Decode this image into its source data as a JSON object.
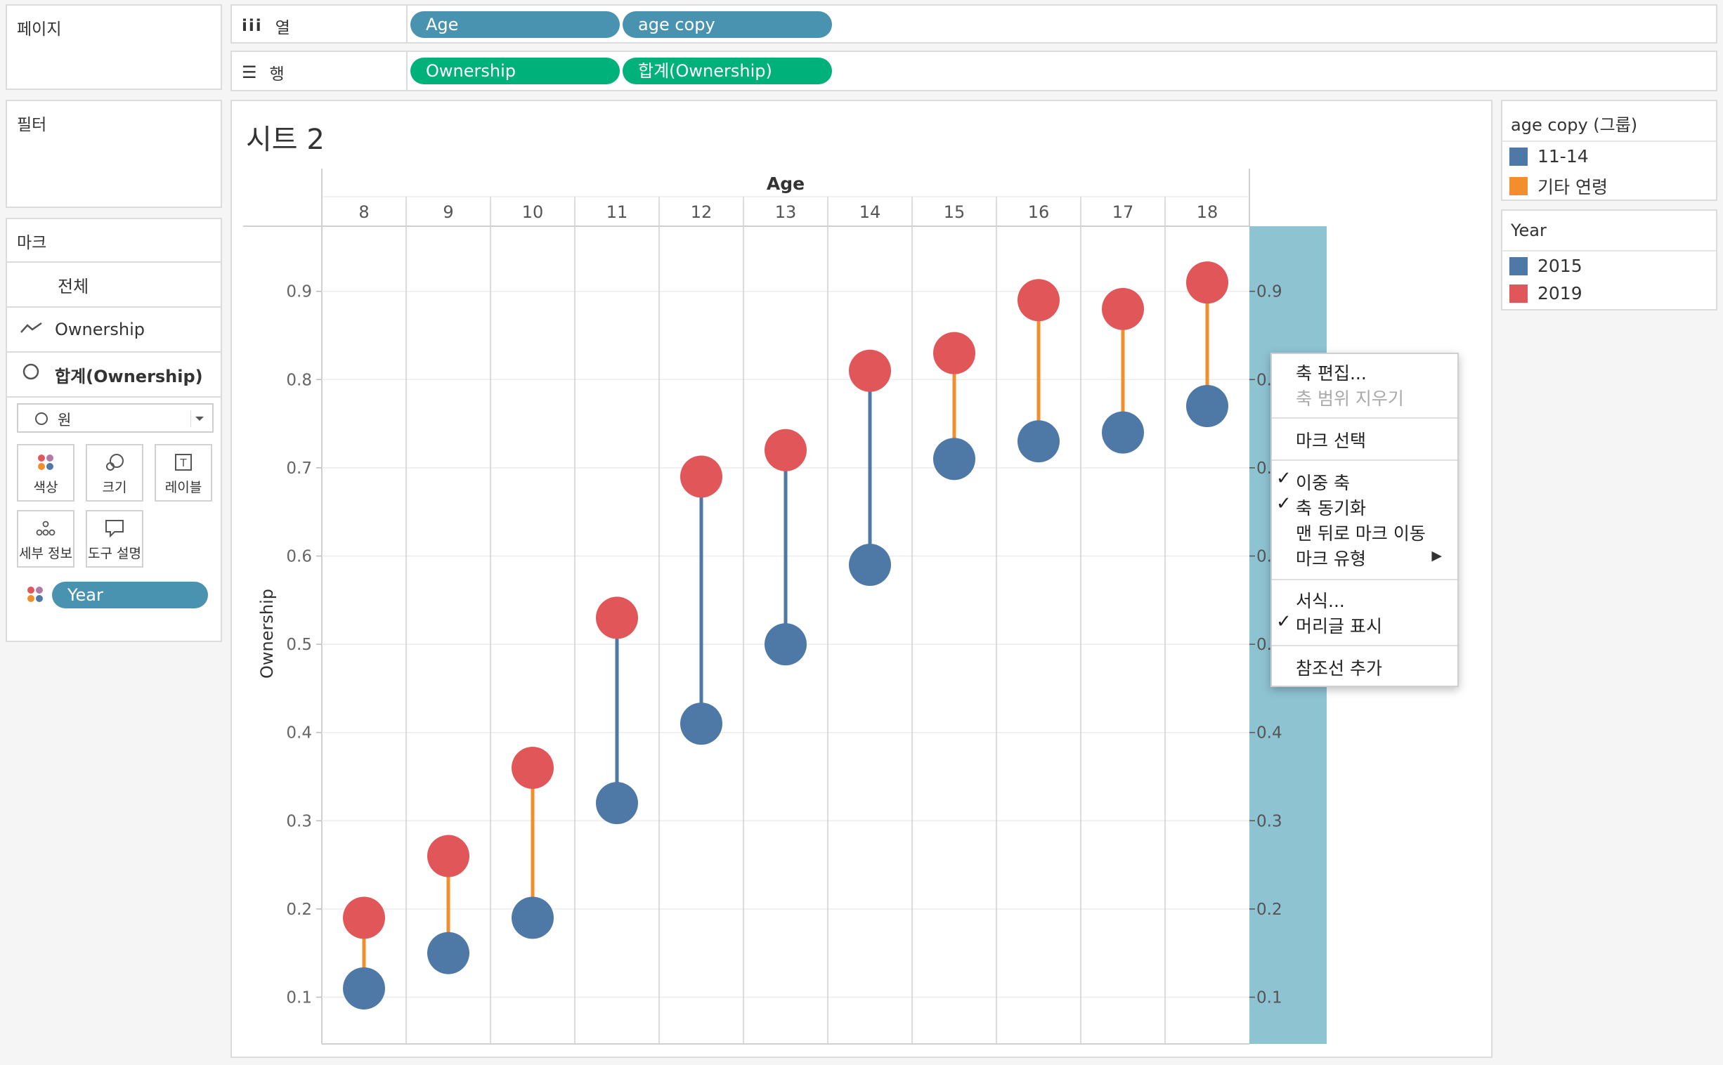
{
  "left_panel": {
    "pages_title": "페이지",
    "filters_title": "필터",
    "marks_title": "마크",
    "marks_all": "전체",
    "marks_layers": [
      {
        "label": "Ownership",
        "icon": "line-mark-icon"
      },
      {
        "label": "합계(Ownership)",
        "icon": "circle-mark-icon"
      }
    ],
    "mark_type_selected": "원",
    "mark_buttons": [
      {
        "label": "색상",
        "icon": "color-icon"
      },
      {
        "label": "크기",
        "icon": "size-icon"
      },
      {
        "label": "레이블",
        "icon": "label-icon"
      },
      {
        "label": "세부 정보",
        "icon": "detail-icon"
      },
      {
        "label": "도구 설명",
        "icon": "tooltip-icon"
      }
    ],
    "color_pill": "Year"
  },
  "shelves": {
    "columns_label": "열",
    "rows_label": "행",
    "columns_pills": [
      "Age",
      "age copy"
    ],
    "rows_pills": [
      "Ownership",
      "합계(Ownership)"
    ]
  },
  "sheet": {
    "title": "시트 2"
  },
  "chart_data": {
    "type": "scatter",
    "subtype": "dumbbell",
    "title": "시트 2",
    "xlabel": "Age",
    "ylabel": "Ownership",
    "categories": [
      "8",
      "9",
      "10",
      "11",
      "12",
      "13",
      "14",
      "15",
      "16",
      "17",
      "18"
    ],
    "series": [
      {
        "name": "2015",
        "color": "#4e79a7",
        "values": [
          0.11,
          0.15,
          0.19,
          0.32,
          0.41,
          0.5,
          0.59,
          0.71,
          0.73,
          0.74,
          0.77
        ]
      },
      {
        "name": "2019",
        "color": "#e15759",
        "values": [
          0.19,
          0.26,
          0.36,
          0.53,
          0.69,
          0.72,
          0.81,
          0.83,
          0.89,
          0.88,
          0.91
        ]
      }
    ],
    "connector_groups": [
      "기타 연령",
      "기타 연령",
      "기타 연령",
      "11-14",
      "11-14",
      "11-14",
      "11-14",
      "기타 연령",
      "기타 연령",
      "기타 연령",
      "기타 연령"
    ],
    "yticks": [
      "0.1",
      "0.2",
      "0.3",
      "0.4",
      "0.5",
      "0.6",
      "0.7",
      "0.8",
      "0.9"
    ],
    "ylim": [
      0.045,
      0.97
    ],
    "dual_axis": true,
    "grid": true
  },
  "legends": {
    "group": {
      "title": "age copy (그룹)",
      "items": [
        {
          "label": "11-14",
          "color": "#4e79a7"
        },
        {
          "label": "기타 연령",
          "color": "#f28e2b"
        }
      ]
    },
    "year": {
      "title": "Year",
      "items": [
        {
          "label": "2015",
          "color": "#4e79a7"
        },
        {
          "label": "2019",
          "color": "#e15759"
        }
      ]
    }
  },
  "context_menu": {
    "items": [
      {
        "label": "축 편집...",
        "checked": false,
        "disabled": false
      },
      {
        "label": "축 범위 지우기",
        "checked": false,
        "disabled": true
      },
      {
        "label": "마크 선택",
        "checked": false,
        "disabled": false
      },
      {
        "label": "이중 축",
        "checked": true,
        "disabled": false
      },
      {
        "label": "축 동기화",
        "checked": true,
        "disabled": false
      },
      {
        "label": "맨 뒤로 마크 이동",
        "checked": false,
        "disabled": false
      },
      {
        "label": "마크 유형",
        "checked": false,
        "disabled": false,
        "submenu": true
      },
      {
        "label": "서식...",
        "checked": false,
        "disabled": false
      },
      {
        "label": "머리글 표시",
        "checked": true,
        "disabled": false
      },
      {
        "label": "참조선 추가",
        "checked": false,
        "disabled": false
      }
    ],
    "check_glyph": "✓",
    "submenu_glyph": "▶"
  },
  "colors": {
    "pill_blue": "#4a93b0",
    "pill_green": "#00b27a",
    "selected_axis": "#8ec3d2",
    "orange_connector": "#f28e2b"
  }
}
